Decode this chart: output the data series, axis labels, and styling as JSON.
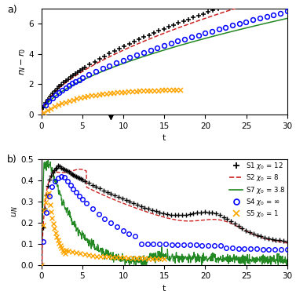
{
  "xlabel": "t",
  "ylabel_a": "$r_N - r_0$",
  "ylabel_b": "$u_N$",
  "xlim": [
    0,
    30
  ],
  "ylim_a": [
    0,
    7
  ],
  "ylim_b": [
    0,
    0.5
  ],
  "yticks_a": [
    0,
    2,
    4,
    6
  ],
  "yticks_b": [
    0,
    0.1,
    0.2,
    0.3,
    0.4,
    0.5
  ],
  "s1_color": "black",
  "s2_color": "#cc2222",
  "s7_color": "#228822",
  "s4_color": "blue",
  "s5_color": "orange",
  "label_a": "a)",
  "label_b": "b)"
}
